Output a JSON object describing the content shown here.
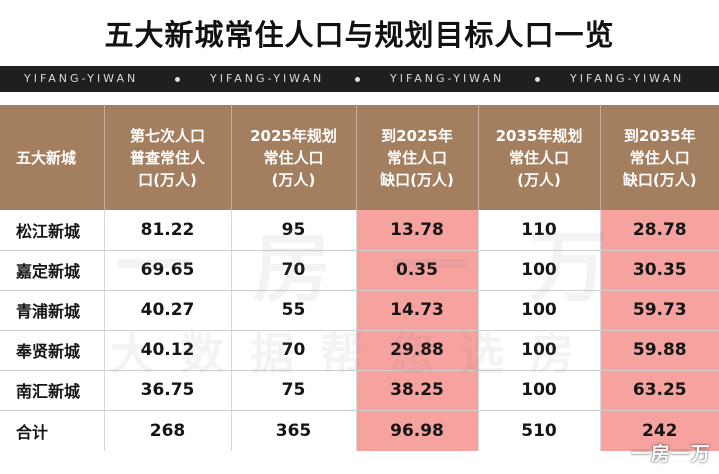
{
  "title": "五大新城常住人口与规划目标人口一览",
  "banner": {
    "segments": [
      "YIFANG-YIWAN",
      "YIFANG-YIWAN",
      "YIFANG-YIWAN",
      "YIFANG-YIWAN"
    ]
  },
  "table": {
    "headers": [
      [
        "五大新城"
      ],
      [
        "第七次人口",
        "普查常住人",
        "口(万人)"
      ],
      [
        "2025年规划",
        "常住人口",
        "(万人)"
      ],
      [
        "到2025年",
        "常住人口",
        "缺口(万人)"
      ],
      [
        "2035年规划",
        "常住人口",
        "(万人)"
      ],
      [
        "到2035年",
        "常住人口",
        "缺口(万人)"
      ]
    ],
    "rows": [
      [
        "松江新城",
        "81.22",
        "95",
        "13.78",
        "110",
        "28.78"
      ],
      [
        "嘉定新城",
        "69.65",
        "70",
        "0.35",
        "100",
        "30.35"
      ],
      [
        "青浦新城",
        "40.27",
        "55",
        "14.73",
        "100",
        "59.73"
      ],
      [
        "奉贤新城",
        "40.12",
        "70",
        "29.88",
        "100",
        "59.88"
      ],
      [
        "南汇新城",
        "36.75",
        "75",
        "38.25",
        "100",
        "63.25"
      ],
      [
        "合计",
        "268",
        "365",
        "96.98",
        "510",
        "242"
      ]
    ]
  },
  "watermark": {
    "line1": "一房一万",
    "line2": "大数据帮您选房",
    "corner": "一房一万"
  },
  "colors": {
    "header_bg": "#a37f5f",
    "gap_highlight": "#f6a3a0",
    "banner_bg": "#1f1f1f"
  }
}
